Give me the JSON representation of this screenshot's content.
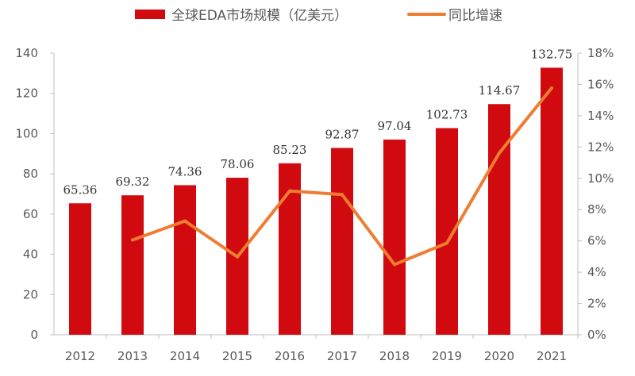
{
  "chart_data": {
    "type": "bar+line",
    "categories": [
      "2012",
      "2013",
      "2014",
      "2015",
      "2016",
      "2017",
      "2018",
      "2019",
      "2020",
      "2021"
    ],
    "series": [
      {
        "name": "全球EDA市场规模（亿美元）",
        "type": "bar",
        "axis": "left",
        "color": "#D10A10",
        "values": [
          65.36,
          69.32,
          74.36,
          78.06,
          85.23,
          92.87,
          97.04,
          102.73,
          114.67,
          132.75
        ],
        "labels": [
          "65.36",
          "69.32",
          "74.36",
          "78.06",
          "85.23",
          "92.87",
          "97.04",
          "102.73",
          "114.67",
          "132.75"
        ]
      },
      {
        "name": "同比增速",
        "type": "line",
        "axis": "right",
        "color": "#ED7D31",
        "values": [
          null,
          6.06,
          7.27,
          4.98,
          9.19,
          8.96,
          4.49,
          5.86,
          11.62,
          15.77
        ]
      }
    ],
    "y_left": {
      "range": [
        0,
        140
      ],
      "ticks": [
        "0",
        "20",
        "40",
        "60",
        "80",
        "100",
        "120",
        "140"
      ]
    },
    "y_right": {
      "range": [
        0,
        18
      ],
      "ticks": [
        "0%",
        "2%",
        "4%",
        "6%",
        "8%",
        "10%",
        "12%",
        "14%",
        "16%",
        "18%"
      ]
    },
    "legend_position": "top",
    "grid": false
  }
}
